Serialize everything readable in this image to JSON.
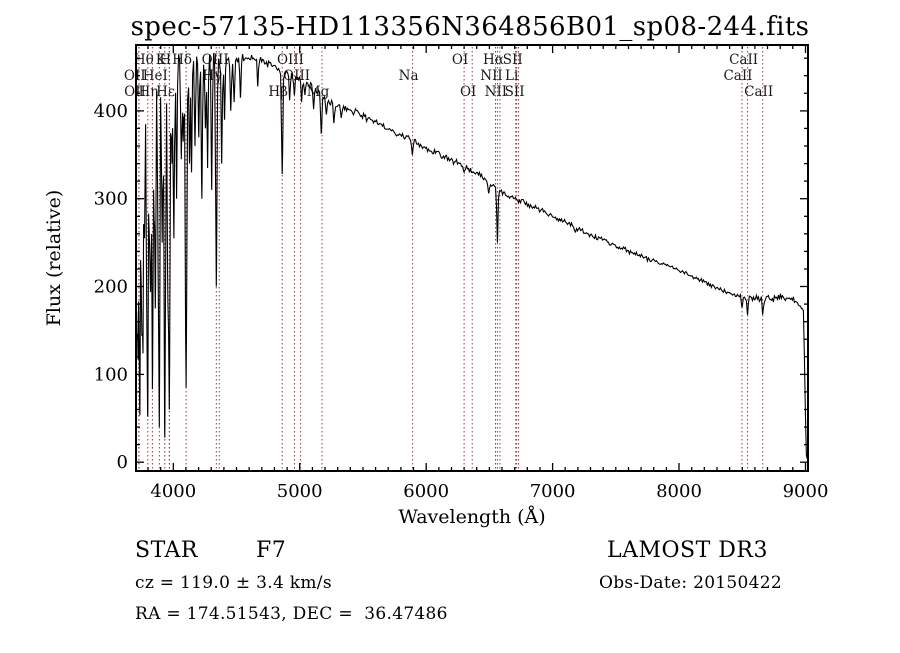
{
  "title": "spec-57135-HD113356N364856B01_sp08-244.fits",
  "annotations": {
    "class_label": "STAR",
    "subclass_label": "F7",
    "cz_line": "cz = 119.0 ± 3.4 km/s",
    "radec_line": "RA = 174.51543, DEC =  36.47486",
    "survey_label": "LAMOST DR3",
    "obsdate_line": "Obs-Date: 20150422"
  },
  "chart_data": {
    "type": "line",
    "title": "spec-57135-HD113356N364856B01_sp08-244.fits",
    "xlabel": "Wavelength (Å)",
    "ylabel": "Flux (relative)",
    "xlim": [
      3705,
      9020
    ],
    "ylim": [
      -10,
      475
    ],
    "x_ticks": [
      4000,
      5000,
      6000,
      7000,
      8000,
      9000
    ],
    "x_minor_step": 100,
    "y_ticks": [
      0,
      100,
      200,
      300,
      400
    ],
    "y_minor_step": 20,
    "grid": false,
    "curve_color": "#000000",
    "marker_line_color": "#a03535",
    "marker_label_color": "#1a1a1a",
    "spectral_lines": [
      {
        "label": "OII",
        "wavelength": 3727,
        "row": 2
      },
      {
        "label": "OII",
        "wavelength": 3729,
        "row": 3
      },
      {
        "label": "Hθ",
        "wavelength": 3798,
        "row": 1
      },
      {
        "label": "Hη",
        "wavelength": 3835,
        "row": 3
      },
      {
        "label": "HeI",
        "wavelength": 3889,
        "row": 2
      },
      {
        "label": "K",
        "wavelength": 3933,
        "row": 1
      },
      {
        "label": "H",
        "wavelength": 3968,
        "row": 1
      },
      {
        "label": "Hε",
        "wavelength": 3970,
        "row": 3
      },
      {
        "label": "Hδ",
        "wavelength": 4101,
        "row": 1
      },
      {
        "label": "Hγ",
        "wavelength": 4340,
        "row": 2
      },
      {
        "label": "OIII",
        "wavelength": 4363,
        "row": 1
      },
      {
        "label": "Hβ",
        "wavelength": 4861,
        "row": 3
      },
      {
        "label": "OIII",
        "wavelength": 4959,
        "row": 1
      },
      {
        "label": "OIII",
        "wavelength": 5007,
        "row": 2
      },
      {
        "label": "Mg",
        "wavelength": 5176,
        "row": 3
      },
      {
        "label": "Na",
        "wavelength": 5893,
        "row": 2
      },
      {
        "label": "OI",
        "wavelength": 6300,
        "row": 1
      },
      {
        "label": "OI",
        "wavelength": 6364,
        "row": 3
      },
      {
        "label": "NII",
        "wavelength": 6548,
        "row": 2
      },
      {
        "label": "Hα",
        "wavelength": 6563,
        "row": 1
      },
      {
        "label": "NII",
        "wavelength": 6583,
        "row": 3
      },
      {
        "label": "Li",
        "wavelength": 6708,
        "row": 2
      },
      {
        "label": "SII",
        "wavelength": 6716,
        "row": 1
      },
      {
        "label": "SII",
        "wavelength": 6731,
        "row": 3
      },
      {
        "label": "CaII",
        "wavelength": 8498,
        "row": 2
      },
      {
        "label": "CaII",
        "wavelength": 8542,
        "row": 1
      },
      {
        "label": "CaII",
        "wavelength": 8662,
        "row": 3
      }
    ],
    "spectrum": {
      "continuum": [
        [
          3710,
          415
        ],
        [
          3760,
          428
        ],
        [
          3810,
          440
        ],
        [
          3860,
          448
        ],
        [
          3910,
          454
        ],
        [
          3960,
          457
        ],
        [
          4000,
          459
        ],
        [
          4100,
          461
        ],
        [
          4200,
          463
        ],
        [
          4300,
          461
        ],
        [
          4400,
          457
        ],
        [
          4500,
          458
        ],
        [
          4600,
          460
        ],
        [
          4700,
          458
        ],
        [
          4800,
          451
        ],
        [
          4861,
          446
        ],
        [
          4900,
          443
        ],
        [
          5000,
          437
        ],
        [
          5100,
          427
        ],
        [
          5200,
          412
        ],
        [
          5300,
          406
        ],
        [
          5400,
          400
        ],
        [
          5500,
          394
        ],
        [
          5600,
          388
        ],
        [
          5700,
          380
        ],
        [
          5800,
          372
        ],
        [
          5900,
          365
        ],
        [
          6000,
          358
        ],
        [
          6100,
          351
        ],
        [
          6200,
          344
        ],
        [
          6300,
          337
        ],
        [
          6400,
          329
        ],
        [
          6500,
          317
        ],
        [
          6600,
          307
        ],
        [
          6700,
          300
        ],
        [
          6800,
          294
        ],
        [
          6900,
          287
        ],
        [
          7000,
          280
        ],
        [
          7100,
          273
        ],
        [
          7200,
          266
        ],
        [
          7300,
          259
        ],
        [
          7400,
          253
        ],
        [
          7500,
          246
        ],
        [
          7600,
          240
        ],
        [
          7700,
          234
        ],
        [
          7800,
          229
        ],
        [
          7900,
          224
        ],
        [
          8000,
          219
        ],
        [
          8100,
          211
        ],
        [
          8200,
          205
        ],
        [
          8300,
          198
        ],
        [
          8400,
          192
        ],
        [
          8500,
          188
        ],
        [
          8600,
          186
        ],
        [
          8700,
          185
        ],
        [
          8800,
          188
        ],
        [
          8860,
          187
        ],
        [
          8910,
          183
        ],
        [
          8955,
          178
        ],
        [
          8985,
          172
        ],
        [
          9005,
          8
        ],
        [
          9015,
          4
        ]
      ],
      "absorption_features": [
        [
          3712,
          150,
          4
        ],
        [
          3722,
          60,
          4
        ],
        [
          3728,
          200,
          3
        ],
        [
          3736,
          25,
          4
        ],
        [
          3745,
          235,
          3
        ],
        [
          3752,
          150,
          3
        ],
        [
          3760,
          120,
          4
        ],
        [
          3772,
          255,
          3
        ],
        [
          3790,
          230,
          3
        ],
        [
          3798,
          50,
          5
        ],
        [
          3812,
          265,
          3
        ],
        [
          3820,
          195,
          4
        ],
        [
          3835,
          80,
          5
        ],
        [
          3848,
          285,
          3
        ],
        [
          3858,
          175,
          4
        ],
        [
          3880,
          260,
          4
        ],
        [
          3889,
          40,
          5
        ],
        [
          3912,
          250,
          4
        ],
        [
          3933,
          28,
          6
        ],
        [
          3957,
          210,
          4
        ],
        [
          3968,
          60,
          6
        ],
        [
          3990,
          340,
          3
        ],
        [
          4005,
          255,
          4
        ],
        [
          4026,
          300,
          4
        ],
        [
          4063,
          345,
          3
        ],
        [
          4078,
          365,
          3
        ],
        [
          4101,
          85,
          6
        ],
        [
          4128,
          340,
          3
        ],
        [
          4144,
          330,
          4
        ],
        [
          4172,
          360,
          3
        ],
        [
          4202,
          370,
          3
        ],
        [
          4226,
          300,
          4
        ],
        [
          4254,
          380,
          3
        ],
        [
          4271,
          335,
          4
        ],
        [
          4304,
          310,
          4
        ],
        [
          4340,
          200,
          5
        ],
        [
          4383,
          340,
          4
        ],
        [
          4405,
          390,
          3
        ],
        [
          4455,
          400,
          3
        ],
        [
          4481,
          410,
          3
        ],
        [
          4531,
          415,
          3
        ],
        [
          4668,
          428,
          3
        ],
        [
          4861,
          328,
          5
        ],
        [
          4920,
          412,
          3
        ],
        [
          4957,
          418,
          3
        ],
        [
          5015,
          410,
          3
        ],
        [
          5041,
          418,
          3
        ],
        [
          5110,
          402,
          4
        ],
        [
          5170,
          374,
          5
        ],
        [
          5210,
          396,
          3
        ],
        [
          5270,
          386,
          4
        ],
        [
          5328,
          392,
          3
        ],
        [
          5890,
          350,
          4
        ],
        [
          6122,
          346,
          3
        ],
        [
          6300,
          330,
          3
        ],
        [
          6495,
          306,
          3
        ],
        [
          6563,
          250,
          4
        ],
        [
          7180,
          262,
          3
        ],
        [
          8498,
          176,
          3
        ],
        [
          8542,
          168,
          3
        ],
        [
          8662,
          168,
          3
        ]
      ],
      "noise_profile": [
        [
          3705,
          3960,
          16
        ],
        [
          3960,
          4400,
          10
        ],
        [
          4400,
          4900,
          6
        ],
        [
          4900,
          5600,
          5
        ],
        [
          5600,
          6600,
          4
        ],
        [
          6600,
          7800,
          3.5
        ],
        [
          7800,
          8600,
          3
        ],
        [
          8600,
          8945,
          5
        ],
        [
          8945,
          9020,
          2
        ]
      ]
    }
  }
}
